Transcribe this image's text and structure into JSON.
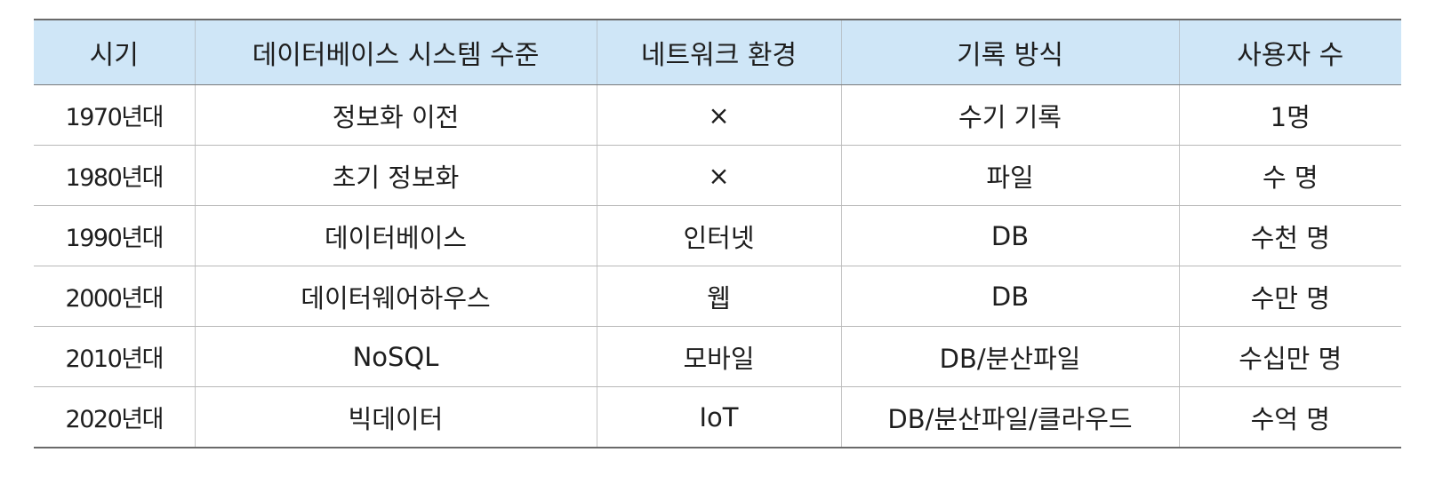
{
  "table": {
    "headers": [
      "시기",
      "데이터베이스 시스템 수준",
      "네트워크 환경",
      "기록 방식",
      "사용자 수"
    ],
    "rows": [
      [
        "1970년대",
        "정보화 이전",
        "×",
        "수기 기록",
        "1명"
      ],
      [
        "1980년대",
        "초기 정보화",
        "×",
        "파일",
        "수 명"
      ],
      [
        "1990년대",
        "데이터베이스",
        "인터넷",
        "DB",
        "수천 명"
      ],
      [
        "2000년대",
        "데이터웨어하우스",
        "웹",
        "DB",
        "수만 명"
      ],
      [
        "2010년대",
        "NoSQL",
        "모바일",
        "DB/분산파일",
        "수십만 명"
      ],
      [
        "2020년대",
        "빅데이터",
        "IoT",
        "DB/분산파일/클라우드",
        "수억 명"
      ]
    ]
  },
  "colors": {
    "header_background": "#cfe6f7",
    "rule": "#6a6a6a",
    "text": "#1e1e1e"
  }
}
